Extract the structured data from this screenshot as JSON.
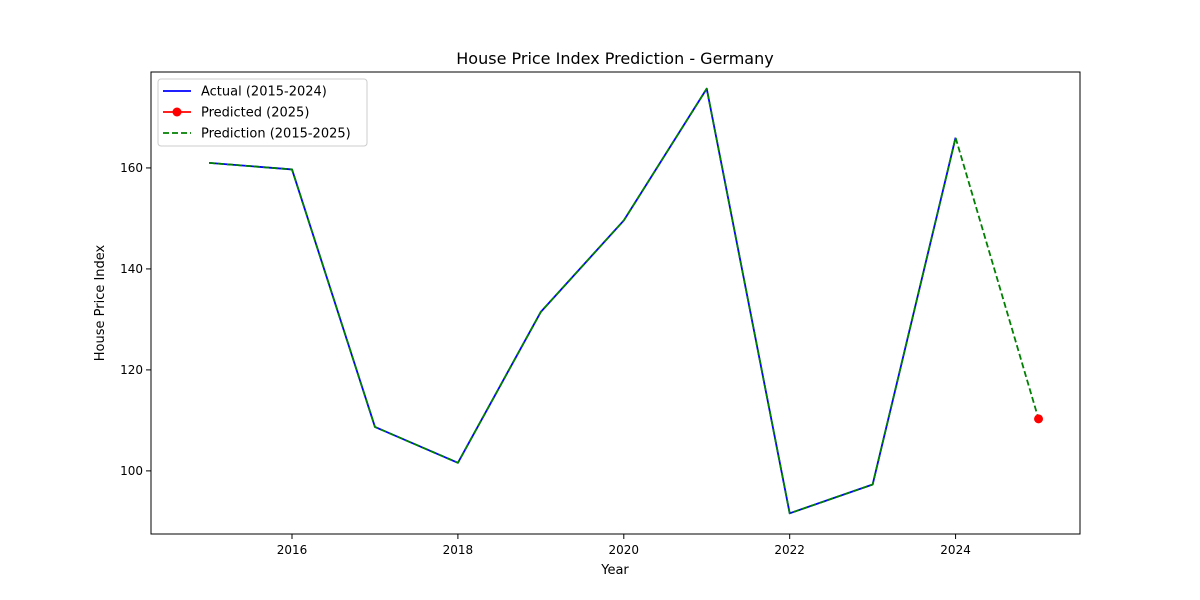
{
  "chart_data": {
    "type": "line",
    "title": "House Price Index Prediction - Germany",
    "xlabel": "Year",
    "ylabel": "House Price Index",
    "xlim": [
      2014.3,
      2025.5
    ],
    "ylim": [
      87.5,
      179.0
    ],
    "xticks": [
      2016,
      2018,
      2020,
      2022,
      2024
    ],
    "yticks": [
      100,
      120,
      140,
      160
    ],
    "grid": false,
    "legend_position": "upper-left",
    "series": [
      {
        "name": "Actual (2015-2024)",
        "style": "solid",
        "color": "#0000ff",
        "x": [
          2015,
          2016,
          2017,
          2018,
          2019,
          2020,
          2021,
          2022,
          2023,
          2024
        ],
        "y": [
          161.0,
          159.7,
          108.7,
          101.6,
          131.5,
          149.6,
          175.7,
          91.6,
          97.3,
          166.0
        ]
      },
      {
        "name": "Predicted (2025)",
        "style": "marker",
        "color": "#ff0000",
        "x": [
          2025
        ],
        "y": [
          110.3
        ]
      },
      {
        "name": "Prediction (2015-2025)",
        "style": "dashed",
        "color": "#008000",
        "x": [
          2015,
          2016,
          2017,
          2018,
          2019,
          2020,
          2021,
          2022,
          2023,
          2024,
          2025
        ],
        "y": [
          161.0,
          159.7,
          108.7,
          101.6,
          131.5,
          149.6,
          175.7,
          91.6,
          97.3,
          166.0,
          110.3
        ]
      }
    ]
  }
}
